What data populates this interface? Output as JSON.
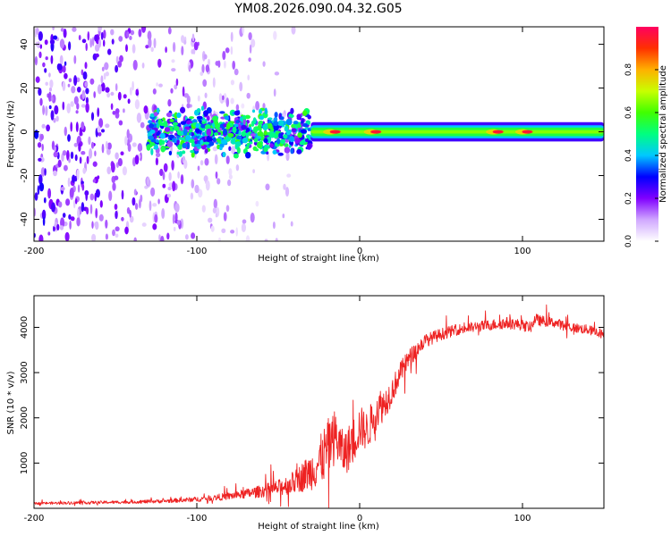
{
  "figure_title": "YM08.2026.090.04.32.G05",
  "chart_data": [
    {
      "type": "heatmap",
      "title": "YM08.2026.090.04.32.G05",
      "xlabel": "Height of straight line (km)",
      "ylabel": "Frequency (Hz)",
      "xlim": [
        -200,
        150
      ],
      "ylim": [
        -50,
        48
      ],
      "xticks": [
        -200,
        -100,
        0,
        100
      ],
      "yticks": [
        -40,
        -20,
        0,
        20,
        40
      ],
      "colorbar": {
        "label": "Normalized spectral amplitude",
        "range": [
          0,
          1
        ],
        "ticks": [
          "0.0",
          "0.2",
          "0.4",
          "0.6",
          "0.8"
        ],
        "tick_values": [
          0,
          0.2,
          0.4,
          0.6,
          0.8
        ],
        "colors": [
          "#ffffff",
          "#d0a8ff",
          "#8000ff",
          "#0000ff",
          "#00c8ff",
          "#00ff80",
          "#40ff00",
          "#c8ff00",
          "#ffb000",
          "#ff3000",
          "#ff0060"
        ]
      },
      "features": [
        {
          "x_range": [
            -200,
            -100
          ],
          "description": "broadband scattered noise",
          "amplitude": 0.1
        },
        {
          "x_range": [
            -130,
            -30
          ],
          "frequency_band": [
            -8,
            8
          ],
          "amplitude": 0.3
        },
        {
          "x_range": [
            -30,
            150
          ],
          "frequency_band": [
            -2,
            2
          ],
          "amplitude": 0.55
        },
        {
          "peaks_x": [
            -15,
            10,
            85,
            103
          ],
          "frequency": 0,
          "amplitude": 0.95
        }
      ]
    },
    {
      "type": "line",
      "xlabel": "Height of straight line (km)",
      "ylabel": "SNR (10 * v/v)",
      "xlim": [
        -200,
        150
      ],
      "ylim": [
        0,
        4700
      ],
      "xticks": [
        -200,
        -100,
        0,
        100
      ],
      "yticks": [
        1000,
        2000,
        3000,
        4000
      ],
      "series": [
        {
          "name": "SNR",
          "color": "#ee2222",
          "x": [
            -200,
            -180,
            -160,
            -140,
            -120,
            -100,
            -90,
            -80,
            -70,
            -60,
            -50,
            -40,
            -30,
            -25,
            -20,
            -15,
            -10,
            -5,
            0,
            5,
            10,
            15,
            20,
            25,
            30,
            40,
            50,
            60,
            70,
            80,
            90,
            100,
            105,
            108,
            110,
            120,
            130,
            140,
            150
          ],
          "y": [
            110,
            120,
            130,
            140,
            160,
            200,
            230,
            270,
            320,
            380,
            450,
            580,
            820,
            1000,
            1300,
            1600,
            1200,
            1400,
            1800,
            1700,
            2200,
            2300,
            2600,
            3000,
            3300,
            3700,
            3850,
            3950,
            4000,
            4050,
            4100,
            4050,
            4000,
            4200,
            4150,
            4100,
            4000,
            3950,
            3850
          ],
          "noise": [
            40,
            50,
            55,
            60,
            70,
            90,
            110,
            140,
            180,
            230,
            300,
            420,
            700,
            900,
            1100,
            1000,
            800,
            900,
            800,
            700,
            800,
            600,
            500,
            400,
            350,
            250,
            220,
            200,
            200,
            200,
            220,
            200,
            200,
            200,
            200,
            180,
            180,
            180,
            180
          ]
        }
      ]
    }
  ]
}
